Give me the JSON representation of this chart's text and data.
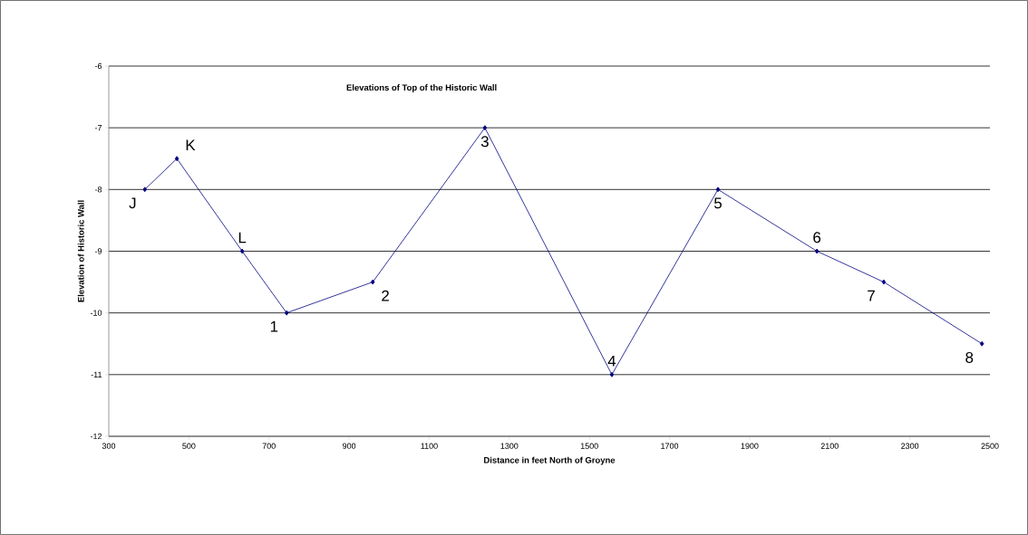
{
  "chart_data": {
    "type": "line",
    "title": "Elevations of Top of the Historic Wall",
    "xlabel": "Distance in feet North of Groyne",
    "ylabel": "Elevation of Historic Wall",
    "x": [
      390,
      470,
      633,
      744,
      959,
      1239,
      1556,
      1821,
      2068,
      2235,
      2480
    ],
    "values": [
      -8,
      -7.5,
      -9,
      -10,
      -9.5,
      -7,
      -11,
      -8,
      -9,
      -9.5,
      -10.5
    ],
    "color": "#000080",
    "marker": "diamond",
    "line_style": "solid",
    "grid": "y",
    "xlim": [
      300,
      2500
    ],
    "xticks": [
      300,
      500,
      700,
      900,
      1100,
      1300,
      1500,
      1700,
      1900,
      2100,
      2300,
      2500
    ],
    "ylim": [
      -12,
      -6
    ],
    "yticks": [
      -12,
      -11,
      -10,
      -9,
      -8,
      -7,
      -6
    ],
    "annotations": [
      {
        "text": "J",
        "x": 390,
        "y": -8
      },
      {
        "text": "K",
        "x": 470,
        "y": -7.5
      },
      {
        "text": "L",
        "x": 633,
        "y": -9
      },
      {
        "text": "1",
        "x": 744,
        "y": -10
      },
      {
        "text": "2",
        "x": 959,
        "y": -9.5
      },
      {
        "text": "3",
        "x": 1239,
        "y": -7
      },
      {
        "text": "4",
        "x": 1556,
        "y": -11
      },
      {
        "text": "5",
        "x": 1821,
        "y": -8
      },
      {
        "text": "6",
        "x": 2068,
        "y": -9
      },
      {
        "text": "7",
        "x": 2235,
        "y": -9.5
      },
      {
        "text": "8",
        "x": 2480,
        "y": -10.5
      }
    ]
  }
}
